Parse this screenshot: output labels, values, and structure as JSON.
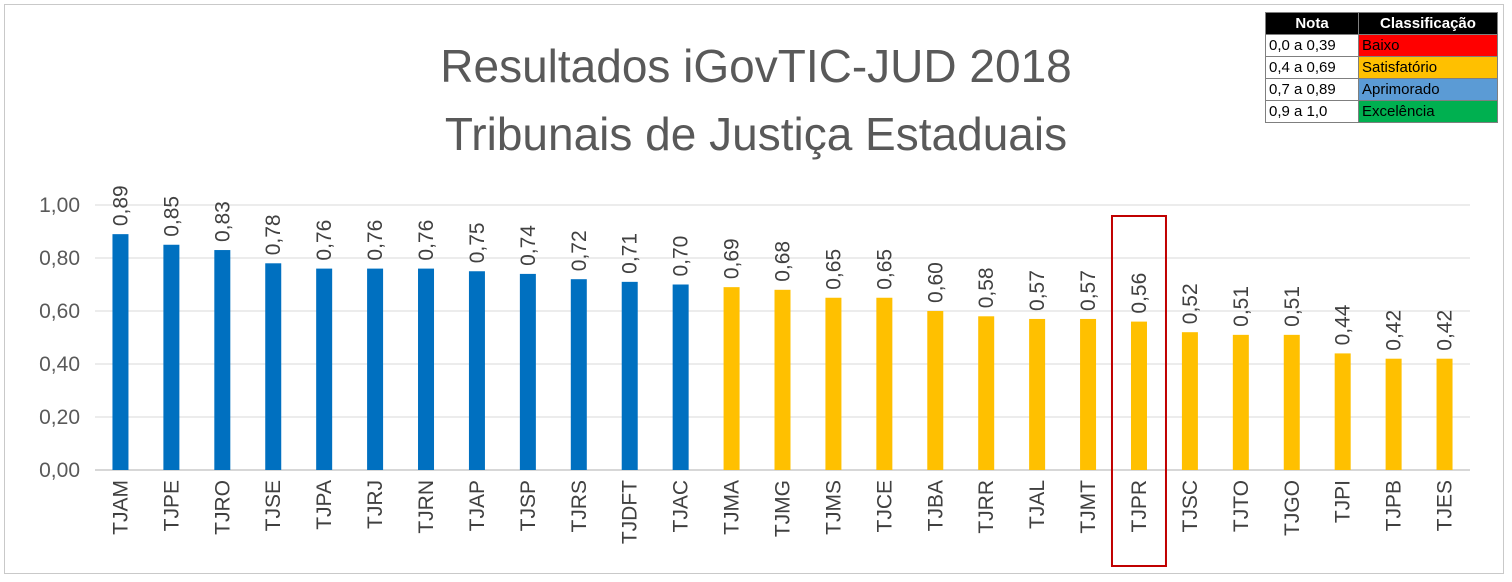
{
  "chart_data": {
    "type": "bar",
    "title": [
      "Resultados iGovTIC-JUD 2018",
      "Tribunais de Justiça Estaduais"
    ],
    "categories": [
      "TJAM",
      "TJPE",
      "TJRO",
      "TJSE",
      "TJPA",
      "TJRJ",
      "TJRN",
      "TJAP",
      "TJSP",
      "TJRS",
      "TJDFT",
      "TJAC",
      "TJMA",
      "TJMG",
      "TJMS",
      "TJCE",
      "TJBA",
      "TJRR",
      "TJAL",
      "TJMT",
      "TJPR",
      "TJSC",
      "TJTO",
      "TJGO",
      "TJPI",
      "TJPB",
      "TJES"
    ],
    "values": [
      0.89,
      0.85,
      0.83,
      0.78,
      0.76,
      0.76,
      0.76,
      0.75,
      0.74,
      0.72,
      0.71,
      0.7,
      0.69,
      0.68,
      0.65,
      0.65,
      0.6,
      0.58,
      0.57,
      0.57,
      0.56,
      0.52,
      0.51,
      0.51,
      0.44,
      0.42,
      0.42
    ],
    "value_labels": [
      "0,89",
      "0,85",
      "0,83",
      "0,78",
      "0,76",
      "0,76",
      "0,76",
      "0,75",
      "0,74",
      "0,72",
      "0,71",
      "0,70",
      "0,69",
      "0,68",
      "0,65",
      "0,65",
      "0,60",
      "0,58",
      "0,57",
      "0,57",
      "0,56",
      "0,52",
      "0,51",
      "0,51",
      "0,44",
      "0,42",
      "0,42"
    ],
    "yticks": [
      "0,00",
      "0,20",
      "0,40",
      "0,60",
      "0,80",
      "1,00"
    ],
    "ylim": [
      0,
      1.0
    ],
    "highlighted_category": "TJPR",
    "colors": {
      "aprimorado": "#0070c0",
      "satisfatorio": "#ffc000",
      "highlight_box": "#c00000",
      "grid": "#d9d9d9"
    },
    "legend": {
      "headers": [
        "Nota",
        "Classificação"
      ],
      "rows": [
        {
          "range": "0,0 a 0,39",
          "label": "Baixo",
          "color": "#ff0000",
          "text_color": "#000000"
        },
        {
          "range": "0,4 a 0,69",
          "label": "Satisfatório",
          "color": "#ffc000",
          "text_color": "#000000"
        },
        {
          "range": "0,7 a 0,89",
          "label": "Aprimorado",
          "color": "#5b9bd5",
          "text_color": "#000000"
        },
        {
          "range": "0,9 a 1,0",
          "label": "Excelência",
          "color": "#00b050",
          "text_color": "#000000"
        }
      ]
    }
  }
}
